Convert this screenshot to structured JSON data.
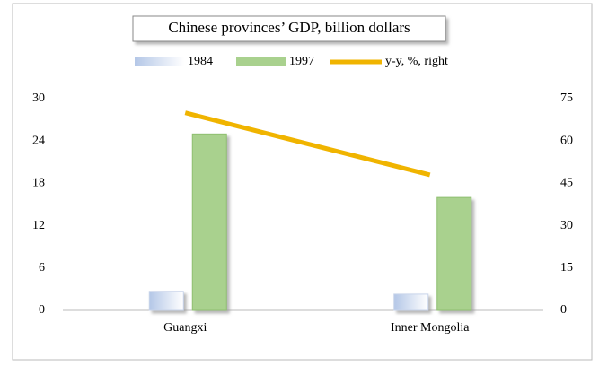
{
  "chart_data": {
    "type": "bar",
    "title": "Chinese provinces’ GDP, billion dollars",
    "categories": [
      "Guangxi",
      "Inner Mongolia"
    ],
    "series": [
      {
        "name": "1984",
        "color": "#b4c7e7",
        "values": [
          2.7,
          2.3
        ]
      },
      {
        "name": "1997",
        "color": "#a9d18e",
        "values": [
          25,
          16
        ]
      },
      {
        "name": "y-y, %, right",
        "color": "#f0b400",
        "type": "line",
        "axis": "y2",
        "values": [
          70,
          48
        ]
      }
    ],
    "ylim": [
      0,
      30
    ],
    "yticks": [
      0,
      6,
      12,
      18,
      24,
      30
    ],
    "y2lim": [
      0,
      75
    ],
    "y2ticks": [
      0,
      15,
      30,
      45,
      60,
      75
    ],
    "grid": false,
    "legend": "top"
  }
}
